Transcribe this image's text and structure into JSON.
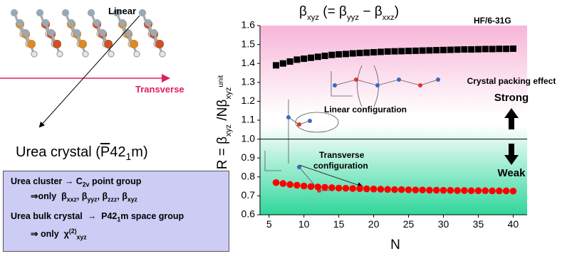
{
  "chart_data": {
    "type": "scatter",
    "title": [
      {
        "text": "β"
      },
      {
        "sub": "xyz"
      },
      {
        "text": " (= β"
      },
      {
        "sub": "yyz"
      },
      {
        "text": " − β"
      },
      {
        "sub": "xxz"
      },
      {
        "text": ")"
      }
    ],
    "method": "HF/6-31G",
    "xlabel": "N",
    "ylabel": [
      {
        "text": "R = β"
      },
      {
        "sub": "xyz"
      },
      {
        "text": " /Nβ"
      },
      {
        "sub": "xyz"
      },
      {
        "sup": "unit"
      }
    ],
    "xlim": [
      3.7,
      42
    ],
    "ylim": [
      0.6,
      1.6
    ],
    "xticks": [
      5,
      10,
      15,
      20,
      25,
      30,
      35,
      40
    ],
    "yticks": [
      0.6,
      0.7,
      0.8,
      0.9,
      {
        "value": 1.0,
        "label": "1.0"
      },
      1.1,
      1.2,
      1.3,
      1.4,
      1.5,
      1.6
    ],
    "reference_line": 1.0,
    "x": [
      6,
      7,
      8,
      9,
      10,
      11,
      12,
      13,
      14,
      15,
      16,
      17,
      18,
      19,
      20,
      21,
      22,
      23,
      24,
      25,
      26,
      27,
      28,
      29,
      30,
      31,
      32,
      33,
      34,
      35,
      36,
      37,
      38,
      39,
      40
    ],
    "series": [
      {
        "color": "#000000",
        "marker": "square",
        "values": [
          1.39,
          1.4,
          1.41,
          1.42,
          1.425,
          1.43,
          1.435,
          1.44,
          1.445,
          1.448,
          1.45,
          1.453,
          1.455,
          1.457,
          1.459,
          1.461,
          1.463,
          1.464,
          1.465,
          1.466,
          1.467,
          1.468,
          1.469,
          1.47,
          1.471,
          1.472,
          1.473,
          1.474,
          1.474,
          1.475,
          1.476,
          1.476,
          1.477,
          1.477,
          1.478
        ]
      },
      {
        "color": "#ff0000",
        "marker": "circle",
        "values": [
          0.77,
          0.765,
          0.76,
          0.756,
          0.752,
          0.749,
          0.747,
          0.745,
          0.743,
          0.741,
          0.74,
          0.739,
          0.738,
          0.737,
          0.736,
          0.735,
          0.734,
          0.733,
          0.733,
          0.732,
          0.731,
          0.731,
          0.73,
          0.73,
          0.729,
          0.729,
          0.728,
          0.728,
          0.727,
          0.727,
          0.727,
          0.726,
          0.726,
          0.726,
          0.725
        ]
      }
    ],
    "linear_label": "Linear configuration",
    "transverse_label": [
      "Transverse",
      "configuration"
    ],
    "effect_label": "Crystal packing effect",
    "strong_label": "Strong",
    "weak_label": "Weak"
  },
  "crystal": {
    "linear": "Linear",
    "transverse": "Transverse",
    "caption": [
      {
        "text": "Urea crystal ("
      },
      {
        "over": "P"
      },
      {
        "text": "42"
      },
      {
        "sub": "1"
      },
      {
        "text": "m)"
      }
    ]
  },
  "box": {
    "lines": [
      [
        {
          "text": "Urea cluster → C"
        },
        {
          "sub": "2v"
        },
        {
          "text": " point group"
        }
      ],
      [
        {
          "text": "⇒only  β"
        },
        {
          "sub": "xxz"
        },
        {
          "text": ", β"
        },
        {
          "sub": "yyz"
        },
        {
          "text": ", β"
        },
        {
          "sub": "zzz"
        },
        {
          "text": ", β"
        },
        {
          "sub": "xyz"
        }
      ],
      [
        {
          "text": "Urea bulk crystal  →  P42"
        },
        {
          "sub": "1"
        },
        {
          "text": "m space group"
        }
      ],
      [
        {
          "text": "⇒ only  χ"
        },
        {
          "sup": "(2)"
        },
        {
          "sub": "xyz"
        }
      ]
    ]
  }
}
